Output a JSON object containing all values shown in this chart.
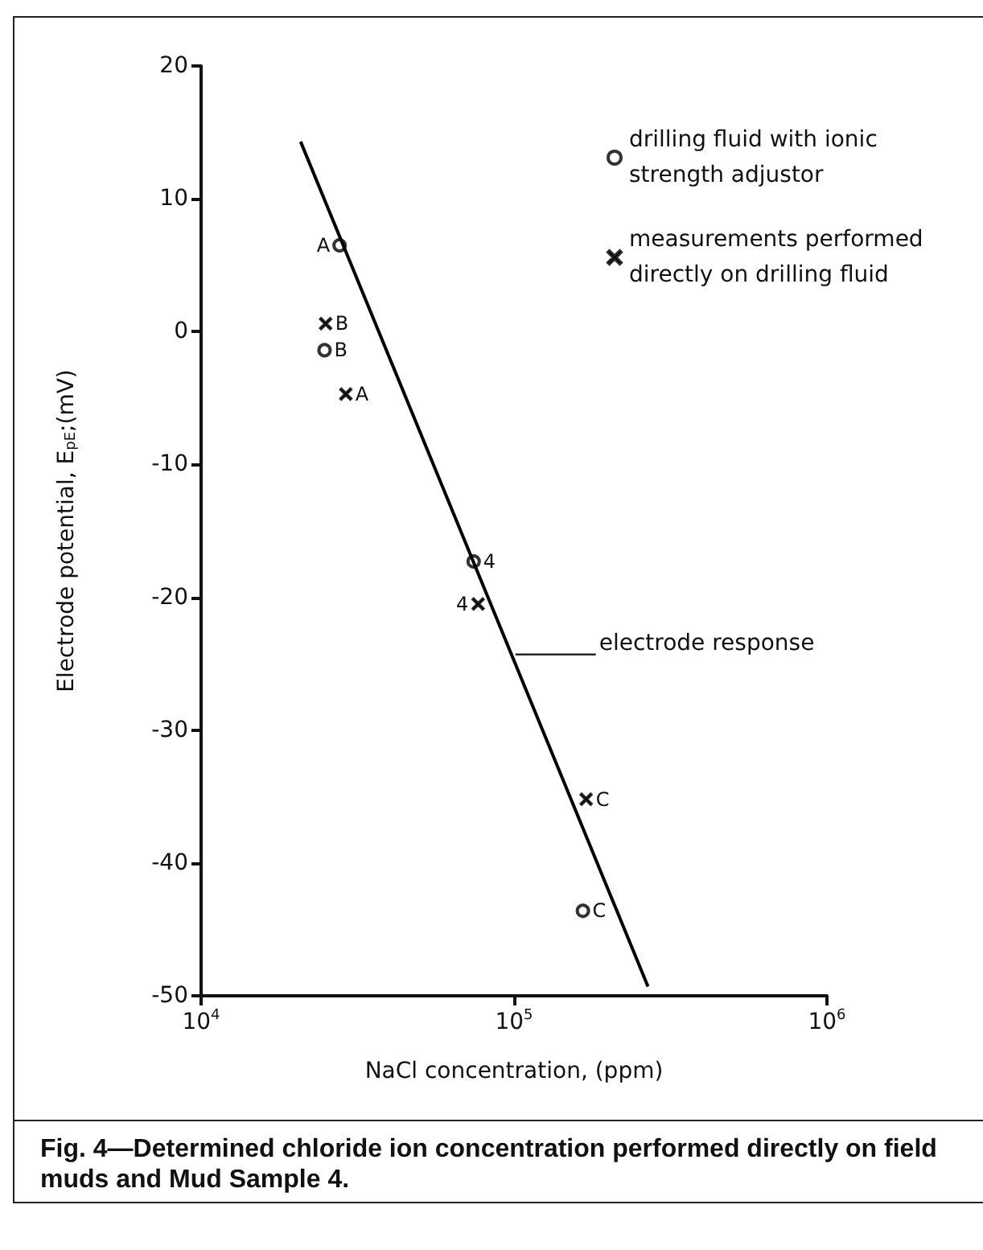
{
  "chart_data": {
    "type": "scatter",
    "title": "Fig. 4—Determined chloride ion concentration performed directly on field muds and Mud Sample 4.",
    "xlabel": "NaCl concentration, (ppm)",
    "ylabel": "Electrode potential, E$_{pE}$;(mV)",
    "log": "x",
    "xlim": [
      10000,
      1000000
    ],
    "xticks": [
      {
        "value": 10000,
        "label": "10$^{4}$"
      },
      {
        "value": 100000,
        "label": "10$^{5}$"
      },
      {
        "value": 1000000,
        "label": "10$^{6}$"
      }
    ],
    "ylim": [
      -50,
      20
    ],
    "yticks": [
      -50,
      -40,
      -30,
      -20,
      -10,
      0,
      10,
      20
    ],
    "grid": false,
    "legend": "top right",
    "series": [
      {
        "name": "drilling fluid with ionic strength adjustor",
        "color": "#000000",
        "marker": "circle",
        "x": [
          27700,
          24800,
          74300,
          166000
        ],
        "values": [
          6.5,
          -1.4,
          -17.3,
          -43.6
        ]
      },
      {
        "name": "measurements performed directly on drilling fluid",
        "color": "#000000",
        "marker": "cross",
        "x": [
          25000,
          29000,
          76800,
          170000
        ],
        "values": [
          0.6,
          -4.7,
          -20.5,
          -35.2
        ]
      },
      {
        "type": "line",
        "color": "#000000",
        "marker": "none",
        "line_style": "solid",
        "x": [
          20800,
          268000
        ],
        "values": [
          14.3,
          -49.3
        ]
      }
    ],
    "annotations": [
      {
        "text": "A",
        "x": 27700,
        "y": 6.5
      },
      {
        "text": "B",
        "x": 25000,
        "y": 0.6
      },
      {
        "text": "B",
        "x": 24800,
        "y": -1.4
      },
      {
        "text": "A",
        "x": 29000,
        "y": -4.7
      },
      {
        "text": "4",
        "x": 74300,
        "y": -17.3
      },
      {
        "text": "4",
        "x": 76800,
        "y": -20.5
      },
      {
        "text": "C",
        "x": 170000,
        "y": -35.2
      },
      {
        "text": "C",
        "x": 166000,
        "y": -43.6
      },
      {
        "text": "electrode response",
        "x": 101000,
        "y": -24.3
      }
    ]
  }
}
